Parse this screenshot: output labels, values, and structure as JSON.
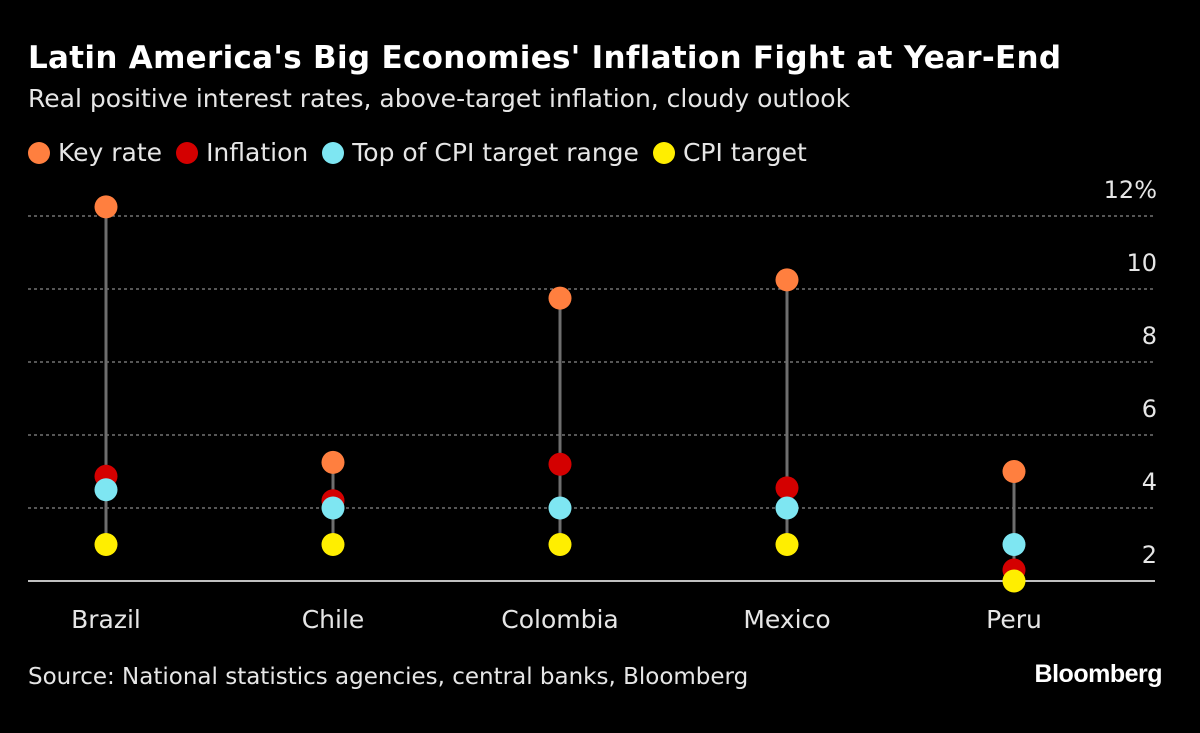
{
  "title": "Latin America's Big Economies' Inflation Fight at Year-End",
  "subtitle": "Real positive interest rates, above-target inflation, cloudy outlook",
  "source": "Source: National statistics agencies, central banks, Bloomberg",
  "logo": "Bloomberg",
  "chart_data": {
    "type": "dot-range",
    "categories": [
      "Brazil",
      "Chile",
      "Colombia",
      "Mexico",
      "Peru"
    ],
    "series": [
      {
        "name": "Key rate",
        "color": "#ff7f3f",
        "values": [
          12.25,
          5.25,
          9.75,
          10.25,
          5.0
        ]
      },
      {
        "name": "Inflation",
        "color": "#d40000",
        "values": [
          4.87,
          4.2,
          5.2,
          4.55,
          2.3
        ]
      },
      {
        "name": "Top of CPI target range",
        "color": "#7ee6f2",
        "values": [
          4.5,
          4.0,
          4.0,
          4.0,
          3.0
        ]
      },
      {
        "name": "CPI target",
        "color": "#ffee00",
        "values": [
          3.0,
          3.0,
          3.0,
          3.0,
          2.0
        ]
      }
    ],
    "yticks": [
      2,
      4,
      6,
      8,
      10,
      12
    ],
    "ytick_labels": [
      "2",
      "4",
      "6",
      "8",
      "10",
      "12%"
    ],
    "ylim": [
      2,
      12.5
    ],
    "grid": true,
    "legend_position": "top-left",
    "axis_side": "right"
  }
}
